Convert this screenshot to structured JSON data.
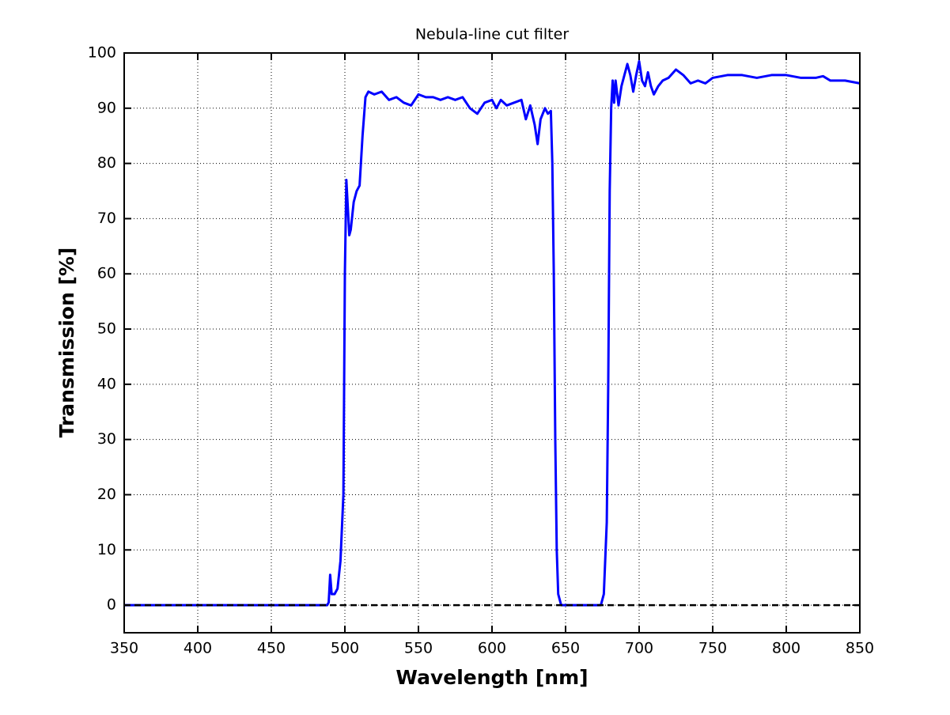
{
  "chart_data": {
    "type": "line",
    "title": "Nebula-line cut filter",
    "x_label": "Wavelength [nm]",
    "y_label": "Transmission [%]",
    "x": [
      350,
      400,
      450,
      488,
      489,
      490,
      491,
      493,
      495,
      497,
      499,
      500,
      501,
      502,
      503,
      504,
      506,
      508,
      510,
      512,
      514,
      516,
      520,
      525,
      530,
      535,
      540,
      545,
      550,
      555,
      560,
      565,
      570,
      575,
      580,
      585,
      590,
      595,
      600,
      603,
      606,
      610,
      615,
      620,
      623,
      626,
      629,
      631,
      633,
      636,
      638,
      640,
      641,
      642,
      643,
      644,
      645,
      647,
      650,
      660,
      670,
      674,
      676,
      678,
      679,
      680,
      681,
      682,
      683,
      684,
      686,
      688,
      690,
      692,
      694,
      696,
      698,
      700,
      702,
      704,
      706,
      708,
      710,
      713,
      716,
      720,
      725,
      730,
      735,
      740,
      745,
      750,
      760,
      770,
      780,
      790,
      800,
      810,
      820,
      825,
      830,
      840,
      850
    ],
    "series": [
      {
        "name": "Transmission",
        "color": "#0000ff",
        "values": [
          0,
          0,
          0,
          0,
          0.5,
          5.5,
          2,
          2,
          3,
          8,
          20,
          60,
          77,
          72,
          67,
          68,
          73,
          75,
          76,
          85,
          92,
          93,
          92.5,
          93,
          91.5,
          92,
          91,
          90.5,
          92.5,
          92,
          92,
          91.5,
          92,
          91.5,
          92,
          90,
          89,
          91,
          91.5,
          90,
          91.5,
          90.5,
          91,
          91.5,
          88,
          90.5,
          87,
          83.5,
          88,
          90,
          89,
          89.5,
          80,
          60,
          30,
          10,
          2,
          0,
          0,
          0,
          0,
          0,
          2,
          15,
          40,
          75,
          90,
          95,
          91,
          95,
          90.5,
          94,
          96,
          98,
          96,
          93,
          96,
          98.5,
          95,
          94,
          96.5,
          94,
          92.5,
          94,
          95,
          95.5,
          97,
          96,
          94.5,
          95,
          94.5,
          95.5,
          96,
          96,
          95.5,
          96,
          96,
          95.5,
          95.5,
          95.8,
          95,
          95,
          94.5
        ]
      }
    ],
    "hline": {
      "y": 0,
      "color": "#000000",
      "dashed": true
    },
    "xlim": [
      350,
      850
    ],
    "xticks": [
      350,
      400,
      450,
      500,
      550,
      600,
      650,
      700,
      750,
      800,
      850
    ],
    "ylim": [
      -5,
      100
    ],
    "yticks": [
      0,
      10,
      20,
      30,
      40,
      50,
      60,
      70,
      80,
      90,
      100
    ],
    "grid": true
  }
}
